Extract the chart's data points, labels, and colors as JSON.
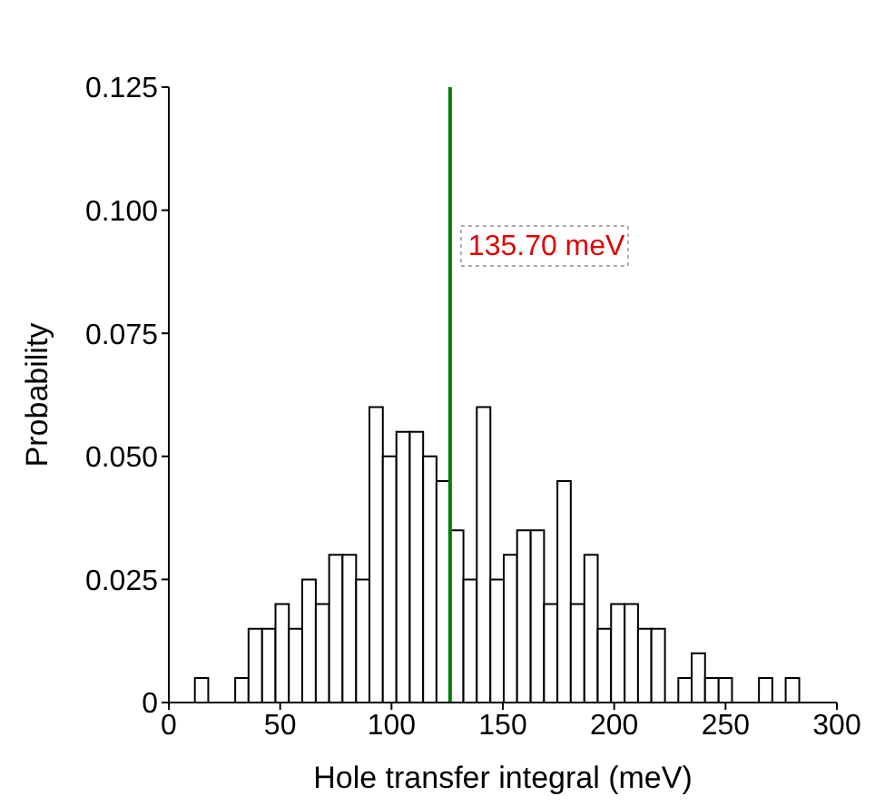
{
  "chart_data": {
    "type": "histogram",
    "xlabel": "Hole transfer integral (meV)",
    "ylabel": "Probability",
    "bins": [
      11.7,
      17.7,
      23.8,
      29.8,
      35.8,
      41.9,
      47.9,
      53.9,
      59.9,
      66.0,
      72.0,
      78.0,
      84.1,
      90.1,
      96.1,
      102.2,
      108.2,
      114.2,
      120.2,
      126.3,
      132.3,
      138.3,
      144.4,
      150.4,
      156.4,
      162.5,
      168.5,
      174.5,
      180.5,
      186.6,
      192.6,
      198.6,
      204.7,
      210.7,
      216.7,
      222.8,
      228.8,
      234.8,
      240.8,
      246.9,
      252.9,
      258.9,
      265.0,
      271.0,
      277.0,
      283.1
    ],
    "values": [
      0.005,
      0,
      0,
      0.005,
      0.015,
      0.015,
      0.02,
      0.015,
      0.025,
      0.02,
      0.03,
      0.03,
      0.025,
      0.06,
      0.05,
      0.055,
      0.055,
      0.05,
      0.045,
      0.035,
      0.025,
      0.06,
      0.025,
      0.03,
      0.035,
      0.035,
      0.02,
      0.045,
      0.02,
      0.03,
      0.015,
      0.02,
      0.02,
      0.015,
      0.015,
      0,
      0.005,
      0.01,
      0.005,
      0.005,
      0,
      0,
      0.005,
      0,
      0.005
    ],
    "color": "#ffffff",
    "xlim": [
      0,
      300
    ],
    "xticks": [
      0,
      50,
      100,
      150,
      200,
      250,
      300
    ],
    "ylim": [
      0,
      0.125
    ],
    "yticks": [
      0,
      0.025,
      {
        "value": 0.05,
        "label": "0.050"
      },
      0.075,
      {
        "value": 0.1,
        "label": "0.100"
      },
      0.125
    ],
    "ref_lines": [
      {
        "axis": "x",
        "value": 126.3,
        "label": "135.70 meV",
        "color": "#008000"
      }
    ]
  }
}
